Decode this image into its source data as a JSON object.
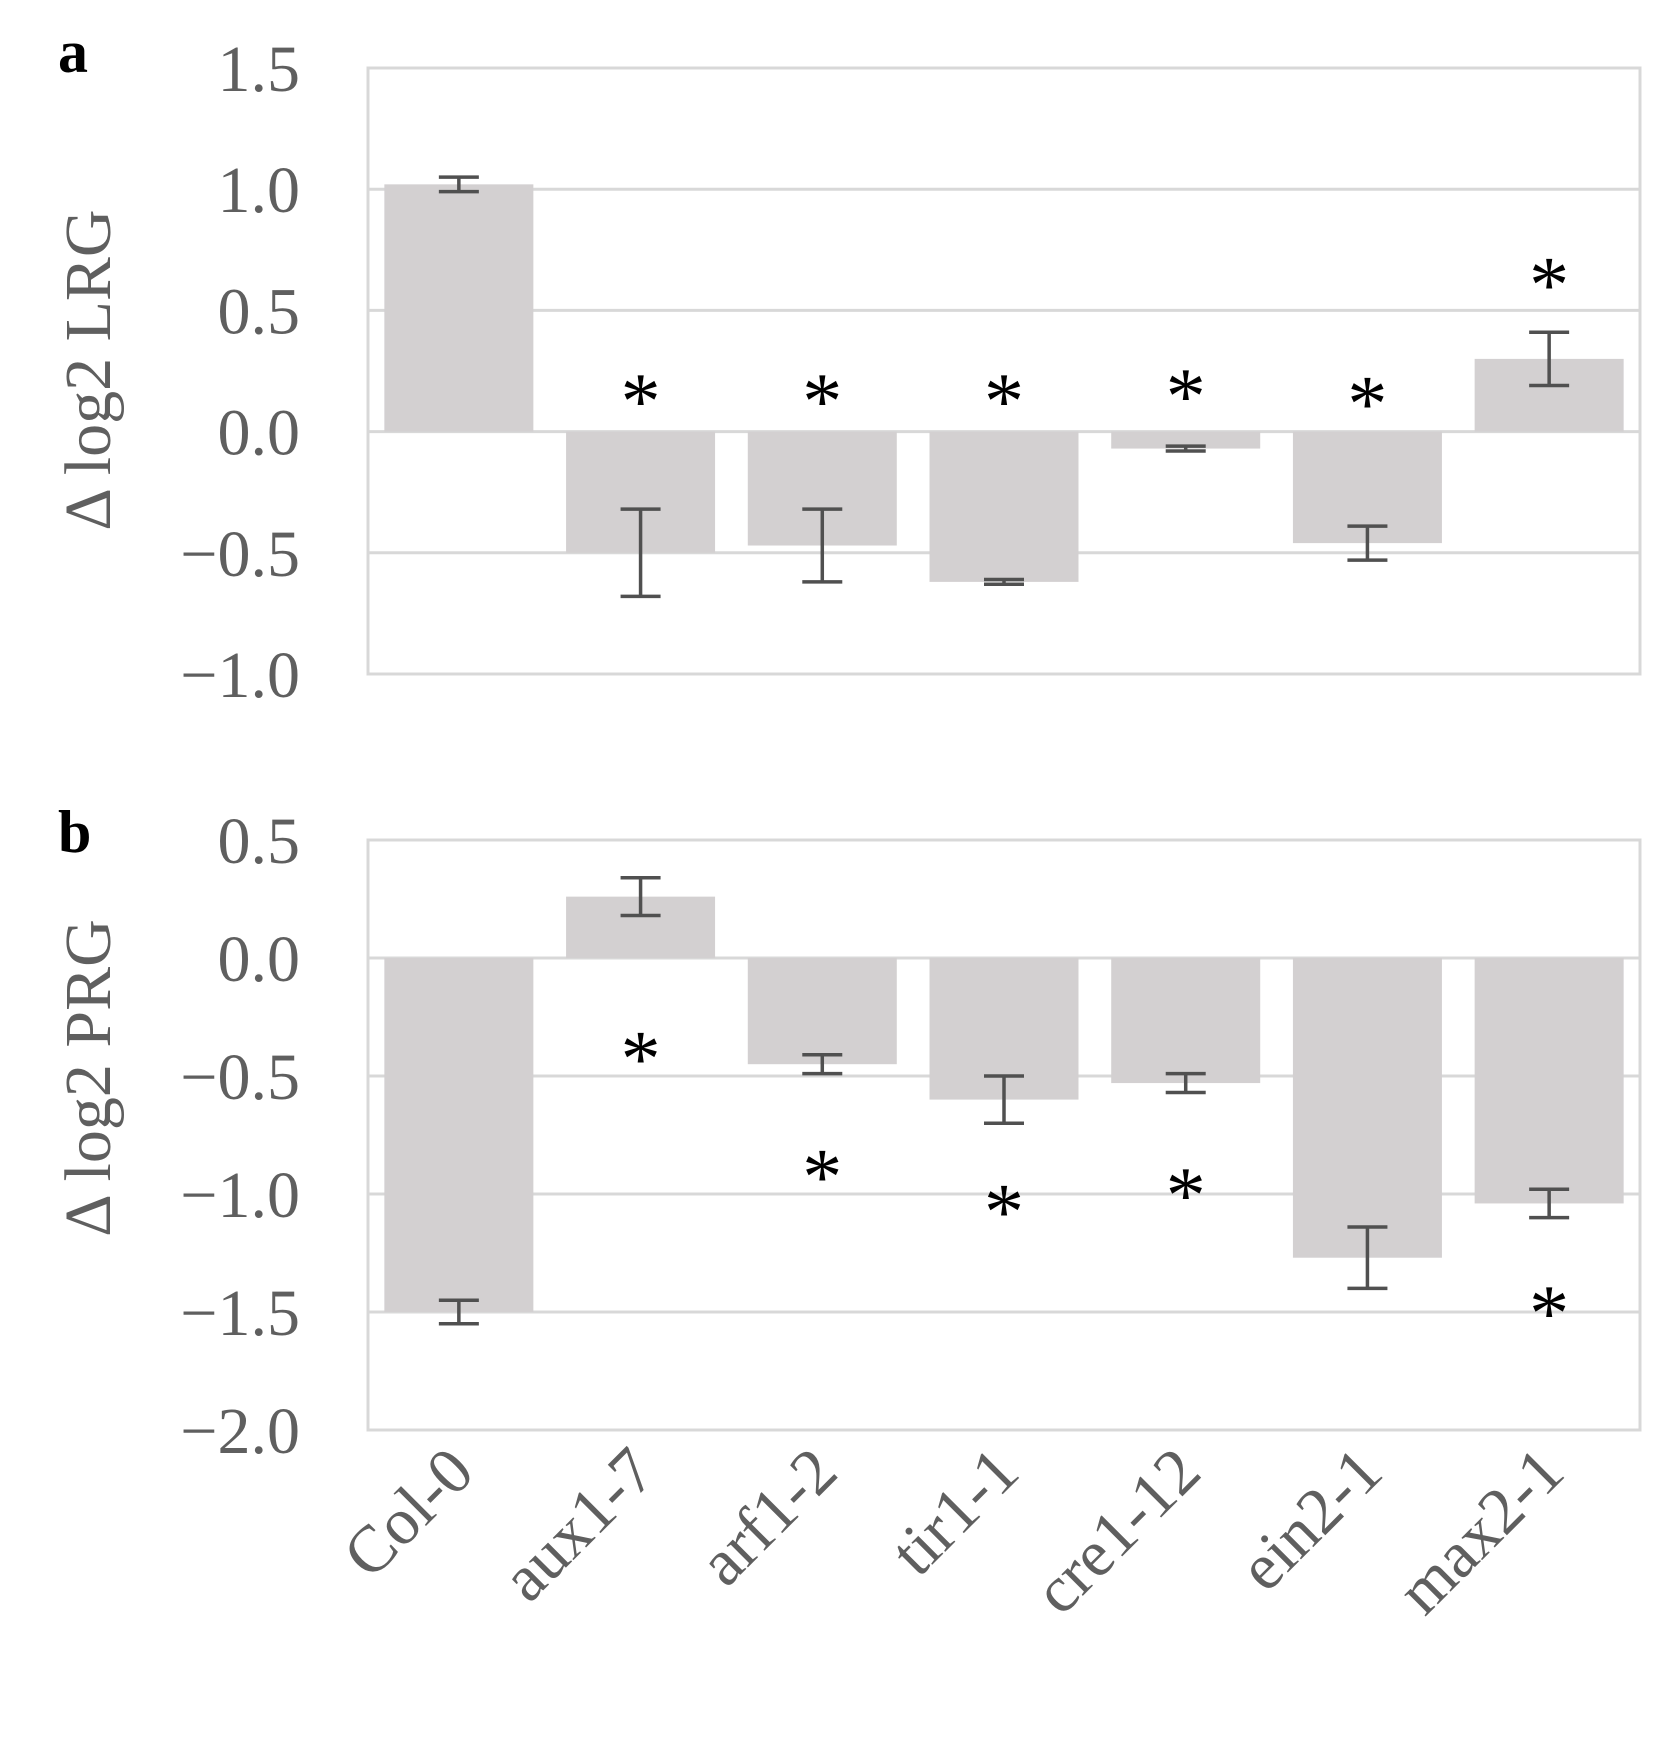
{
  "chart_data": [
    {
      "panel": "a",
      "type": "bar",
      "ylabel": "Δ log2 LRG",
      "ylim": [
        -1.0,
        1.5
      ],
      "yticks": [
        -1.0,
        -0.5,
        0.0,
        0.5,
        1.0,
        1.5
      ],
      "ytick_labels": [
        "−1.0",
        "−0.5",
        "0.0",
        "0.5",
        "1.0",
        "1.5"
      ],
      "grid": true,
      "categories": [
        "Col-0",
        "aux1-7",
        "arf1-2",
        "tir1-1",
        "cre1-12",
        "ein2-1",
        "max2-1"
      ],
      "values": [
        1.02,
        -0.5,
        -0.47,
        -0.62,
        -0.07,
        -0.46,
        0.3
      ],
      "errors": [
        0.03,
        0.18,
        0.15,
        0.01,
        0.01,
        0.07,
        0.11
      ],
      "significant": [
        false,
        true,
        true,
        true,
        true,
        true,
        true
      ],
      "annotation_text": "*",
      "significance_label_y": [
        null,
        0.18,
        0.18,
        0.18,
        0.2,
        0.17,
        0.66
      ],
      "colors": {
        "bar": "#d3d0d1",
        "error": "#505050",
        "grid": "#d8d8d8"
      }
    },
    {
      "panel": "b",
      "type": "bar",
      "ylabel": "Δ log2 PRG",
      "ylim": [
        -2.0,
        0.5
      ],
      "yticks": [
        -2.0,
        -1.5,
        -1.0,
        -0.5,
        0.0,
        0.5
      ],
      "ytick_labels": [
        "−2.0",
        "−1.5",
        "−1.0",
        "−0.5",
        "0.0",
        "0.5"
      ],
      "grid": true,
      "categories": [
        "Col-0",
        "aux1-7",
        "arf1-2",
        "tir1-1",
        "cre1-12",
        "ein2-1",
        "max2-1"
      ],
      "values": [
        -1.5,
        0.26,
        -0.45,
        -0.6,
        -0.53,
        -1.27,
        -1.04
      ],
      "errors": [
        0.05,
        0.08,
        0.04,
        0.1,
        0.04,
        0.13,
        0.06
      ],
      "significant": [
        false,
        true,
        true,
        true,
        true,
        false,
        true
      ],
      "annotation_text": "*",
      "significance_label_y": [
        null,
        -0.37,
        -0.87,
        -1.02,
        -0.95,
        null,
        -1.45
      ],
      "colors": {
        "bar": "#d3d0d1",
        "error": "#505050",
        "grid": "#d8d8d8"
      }
    }
  ]
}
